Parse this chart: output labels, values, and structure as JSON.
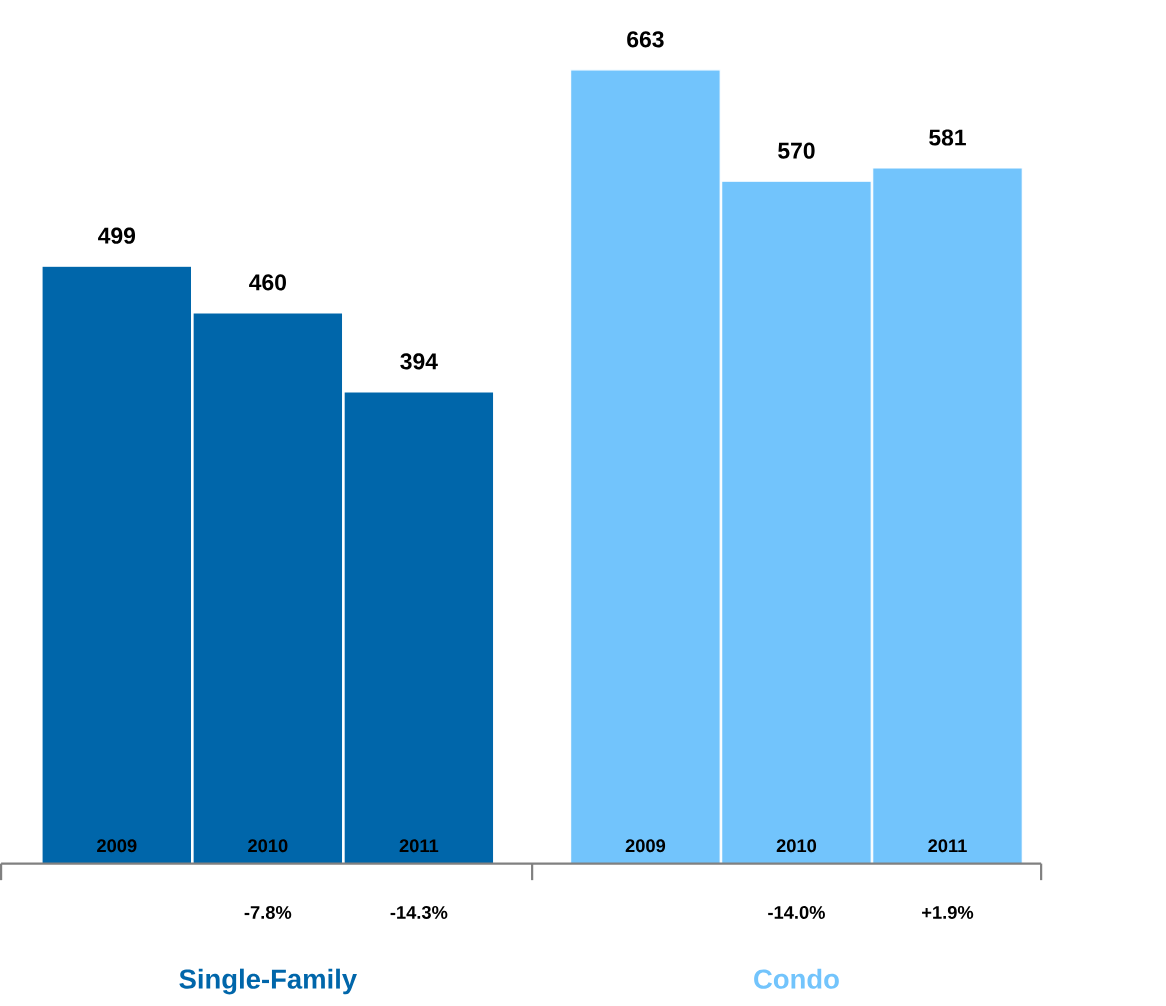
{
  "chart_data": {
    "type": "bar",
    "categories": [
      "2009",
      "2010",
      "2011",
      "2009",
      "2010",
      "2011"
    ],
    "series": [
      {
        "name": "Single-Family",
        "color": "#0066aa",
        "values": [
          499,
          460,
          394,
          null,
          null,
          null
        ]
      },
      {
        "name": "Condo",
        "color": "#72c4fc",
        "values": [
          null,
          null,
          null,
          663,
          570,
          581
        ]
      }
    ],
    "data_labels": true,
    "annotations": [
      "-7.8%",
      "-14.3%",
      "-14.0%",
      "+1.9%"
    ]
  }
}
